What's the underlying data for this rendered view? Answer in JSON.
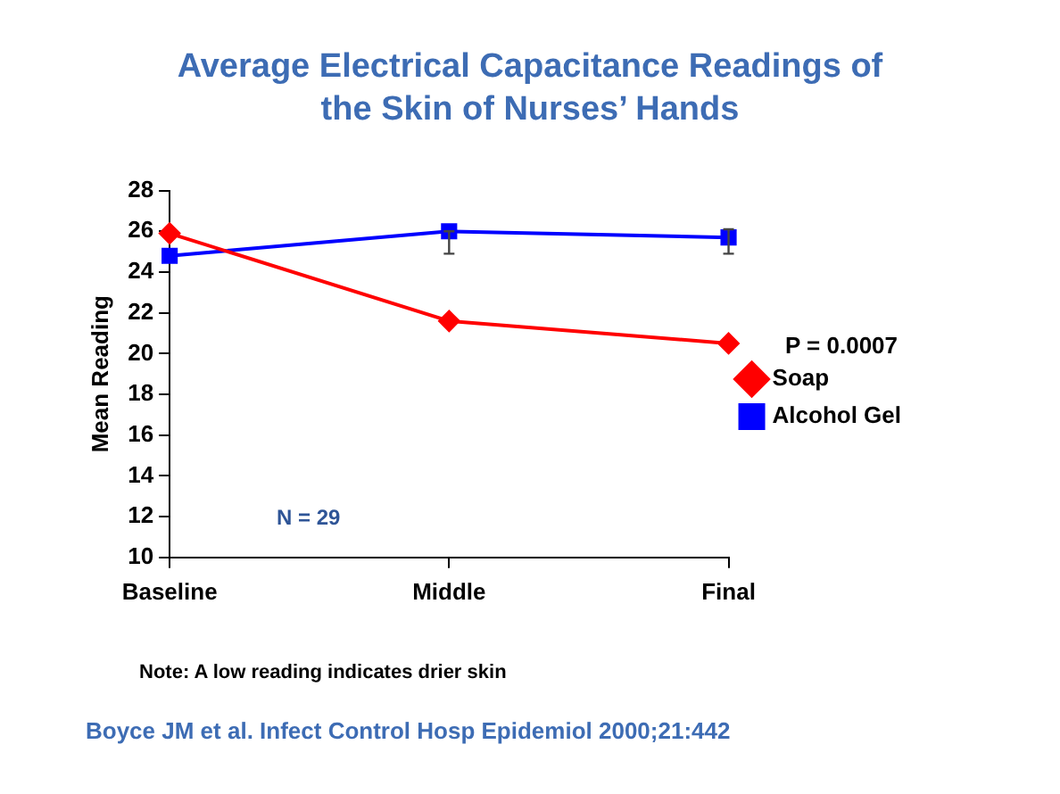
{
  "chart_data": {
    "type": "line",
    "title": "Average Electrical Capacitance Readings of the Skin of Nurses’ Hands",
    "ylabel": "Mean Reading",
    "categories": [
      "Baseline",
      "Middle",
      "Final"
    ],
    "series": [
      {
        "name": "Soap",
        "color": "#ff0000",
        "marker": "diamond",
        "values": [
          25.9,
          21.6,
          20.5
        ]
      },
      {
        "name": "Alcohol Gel",
        "color": "#0000ff",
        "marker": "square",
        "values": [
          24.8,
          26.0,
          25.7
        ],
        "errors": [
          null,
          [
            24.9,
            26.0
          ],
          [
            24.9,
            26.1
          ]
        ]
      }
    ],
    "ylim": [
      10,
      28
    ],
    "yticks": [
      10,
      12,
      14,
      16,
      18,
      20,
      22,
      24,
      26,
      28
    ],
    "grid": false,
    "legend": "right",
    "annotations": [
      "P = 0.0007",
      "N = 29",
      "Note: A low reading indicates drier skin",
      "Boyce JM et al.  Infect Control Hosp Epidemiol 2000;21:442"
    ]
  }
}
